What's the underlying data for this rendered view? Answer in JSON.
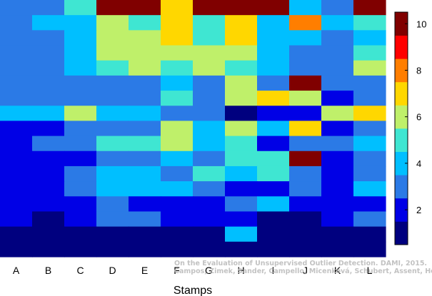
{
  "chart_data": {
    "type": "heatmap",
    "xlabel": "Stamps",
    "x_categories": [
      "A",
      "B",
      "C",
      "D",
      "E",
      "F",
      "G",
      "H",
      "I",
      "J",
      "K",
      "L"
    ],
    "rows": 17,
    "colorbar": {
      "min": 0.5,
      "max": 10.5,
      "ticks": [
        2,
        4,
        6,
        8,
        10
      ],
      "levels": 10
    },
    "values": [
      [
        3,
        3,
        5,
        10,
        10,
        7,
        10,
        10,
        10,
        4,
        3,
        10
      ],
      [
        3,
        4,
        4,
        6,
        5,
        7,
        5,
        7,
        4,
        8,
        4,
        5
      ],
      [
        3,
        3,
        4,
        6,
        6,
        7,
        5,
        7,
        4,
        4,
        3,
        4
      ],
      [
        3,
        3,
        4,
        6,
        6,
        6,
        6,
        6,
        4,
        3,
        3,
        5
      ],
      [
        3,
        3,
        4,
        5,
        6,
        5,
        6,
        5,
        4,
        3,
        3,
        6
      ],
      [
        3,
        3,
        3,
        3,
        3,
        4,
        3,
        6,
        3,
        10,
        3,
        3
      ],
      [
        3,
        3,
        3,
        3,
        3,
        5,
        3,
        6,
        7,
        6,
        2,
        3
      ],
      [
        4,
        4,
        6,
        4,
        4,
        3,
        3,
        1,
        2,
        2,
        6,
        7
      ],
      [
        2,
        2,
        3,
        3,
        3,
        6,
        4,
        6,
        4,
        7,
        2,
        3
      ],
      [
        2,
        3,
        3,
        5,
        5,
        6,
        4,
        5,
        2,
        3,
        3,
        4
      ],
      [
        2,
        2,
        2,
        3,
        3,
        4,
        3,
        5,
        5,
        10,
        2,
        3
      ],
      [
        2,
        2,
        3,
        4,
        4,
        3,
        5,
        4,
        5,
        3,
        2,
        3
      ],
      [
        2,
        2,
        3,
        4,
        4,
        4,
        3,
        2,
        2,
        3,
        2,
        4
      ],
      [
        2,
        2,
        2,
        3,
        2,
        2,
        2,
        3,
        4,
        2,
        2,
        2
      ],
      [
        2,
        1,
        2,
        3,
        3,
        2,
        2,
        2,
        1,
        1,
        2,
        3
      ],
      [
        1,
        1,
        1,
        1,
        1,
        1,
        1,
        4,
        1,
        1,
        1,
        1
      ],
      [
        1,
        1,
        1,
        1,
        1,
        1,
        1,
        1,
        1,
        1,
        1,
        1
      ]
    ],
    "palette": [
      "#00007f",
      "#0000e6",
      "#2b7ae6",
      "#00bfff",
      "#3fe6d2",
      "#bff06a",
      "#ffd700",
      "#ff7e00",
      "#ff0000",
      "#800000"
    ]
  },
  "credit": {
    "line1": "On the Evaluation of Unsupervised Outlier Detection. DAMI, 2015.",
    "line2": "Campos, Zimek, Sander, Campello, Micenková, Schubert, Assent, Houle"
  }
}
